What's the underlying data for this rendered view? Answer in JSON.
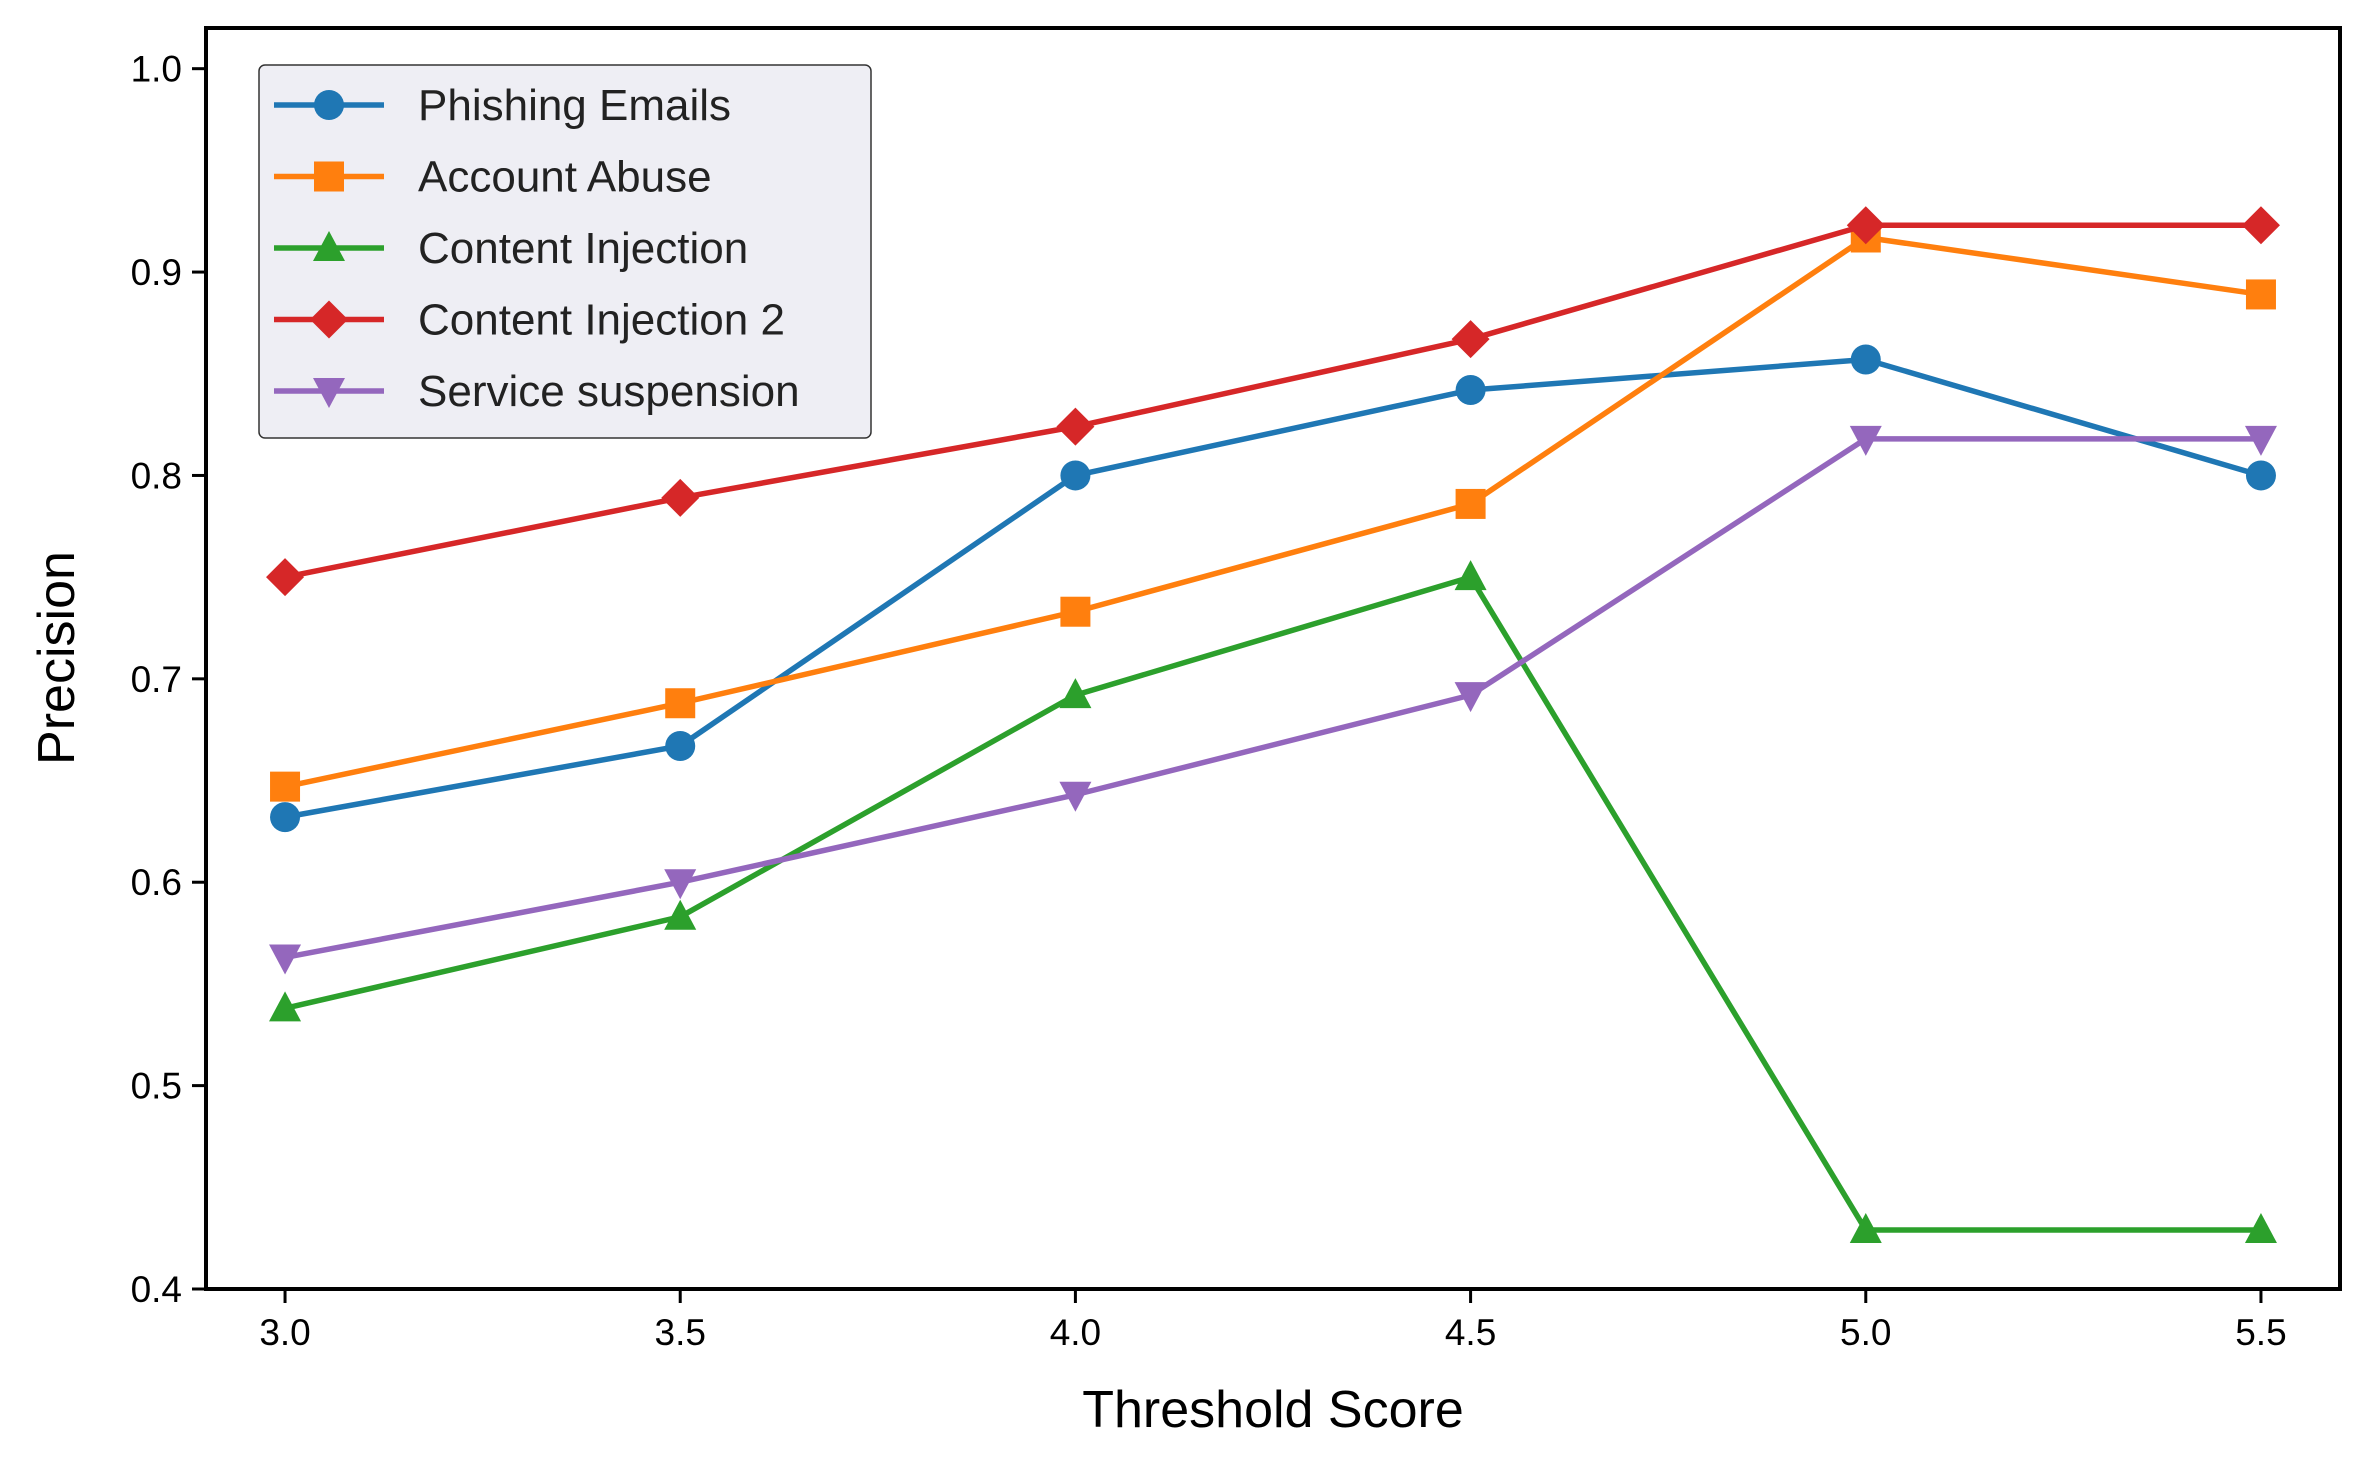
{
  "chart_data": {
    "type": "line",
    "title": "",
    "xlabel": "Threshold Score",
    "ylabel": "Precision",
    "x": [
      3.0,
      3.5,
      4.0,
      4.5,
      5.0,
      5.5
    ],
    "xlim": [
      2.9,
      5.6
    ],
    "ylim": [
      0.4,
      1.02
    ],
    "xticks": [
      "3.0",
      "3.5",
      "4.0",
      "4.5",
      "5.0",
      "5.5"
    ],
    "yticks": [
      "0.4",
      "0.5",
      "0.6",
      "0.7",
      "0.8",
      "0.9",
      "1.0"
    ],
    "grid": false,
    "legend_position": "top-left",
    "series": [
      {
        "name": "Phishing Emails",
        "color": "#1f77b4",
        "marker": "circle",
        "values": [
          0.632,
          0.667,
          0.8,
          0.842,
          0.857,
          0.8
        ]
      },
      {
        "name": "Account Abuse",
        "color": "#ff7f0e",
        "marker": "square",
        "values": [
          0.647,
          0.688,
          0.733,
          0.786,
          0.917,
          0.889
        ]
      },
      {
        "name": "Content Injection",
        "color": "#2ca02c",
        "marker": "triangle-up",
        "values": [
          0.538,
          0.583,
          0.692,
          0.75,
          0.429,
          0.429
        ]
      },
      {
        "name": "Content Injection 2",
        "color": "#d62728",
        "marker": "diamond",
        "values": [
          0.75,
          0.789,
          0.824,
          0.867,
          0.923,
          0.923
        ]
      },
      {
        "name": "Service suspension",
        "color": "#9467bd",
        "marker": "triangle-down",
        "values": [
          0.563,
          0.6,
          0.643,
          0.692,
          0.818,
          0.818
        ]
      }
    ]
  }
}
